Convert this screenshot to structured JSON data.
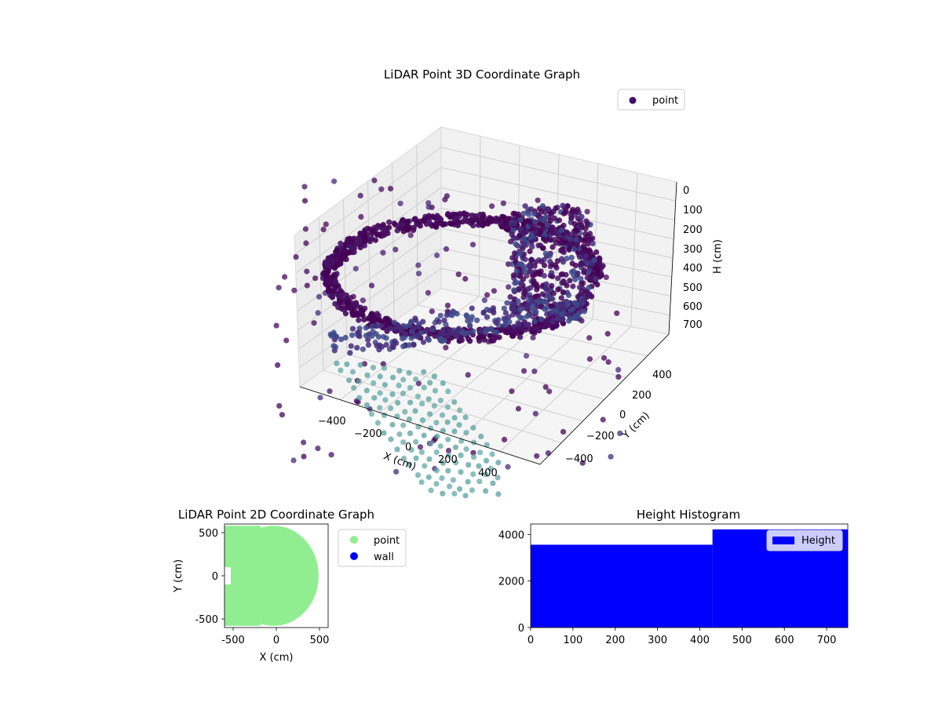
{
  "chart_data": [
    {
      "type": "scatter3d",
      "title": "LiDAR Point 3D Coordinate Graph",
      "xlabel": "X (cm)",
      "ylabel": "Y (cm)",
      "zlabel": "H (cm)",
      "xticks": [
        "−400",
        "−200",
        "0",
        "200",
        "400"
      ],
      "yticks": [
        "400",
        "200",
        "0",
        "−200",
        "−400"
      ],
      "zticks": [
        "0",
        "100",
        "200",
        "300",
        "400",
        "500",
        "600",
        "700"
      ],
      "zlim": [
        0,
        750
      ],
      "z_inverted": true,
      "grid": true,
      "legend": {
        "placement": "upper-right",
        "entries": [
          {
            "name": "point",
            "color": "#440f67"
          }
        ]
      },
      "colormap": "viridis",
      "series": [
        {
          "name": "point",
          "color": "#440f67"
        }
      ]
    },
    {
      "type": "scatter",
      "title": "LiDAR Point 2D Coordinate Graph",
      "xlabel": "X (cm)",
      "ylabel": "Y (cm)",
      "xticks": [
        -500,
        0,
        500
      ],
      "yticks": [
        -500,
        0,
        500
      ],
      "xlim": [
        -600,
        600
      ],
      "ylim": [
        -600,
        600
      ],
      "legend": {
        "placement": "outside-right"
      },
      "series": [
        {
          "name": "point",
          "color": "#90ee90",
          "shape": "filled disc, radius ~500 cm"
        },
        {
          "name": "wall",
          "color": "#0000ff"
        }
      ]
    },
    {
      "type": "bar",
      "title": "Height Histogram",
      "xticks": [
        0,
        100,
        200,
        300,
        400,
        500,
        600,
        700
      ],
      "yticks": [
        0,
        2000,
        4000
      ],
      "xlim": [
        0,
        750
      ],
      "ylim": [
        0,
        4450
      ],
      "legend": {
        "placement": "upper-right"
      },
      "series": [
        {
          "name": "Height",
          "color": "#0000ff",
          "bins": [
            {
              "from": 0,
              "to": 430,
              "value": 3560
            },
            {
              "from": 430,
              "to": 750,
              "value": 4220
            }
          ]
        }
      ]
    }
  ]
}
